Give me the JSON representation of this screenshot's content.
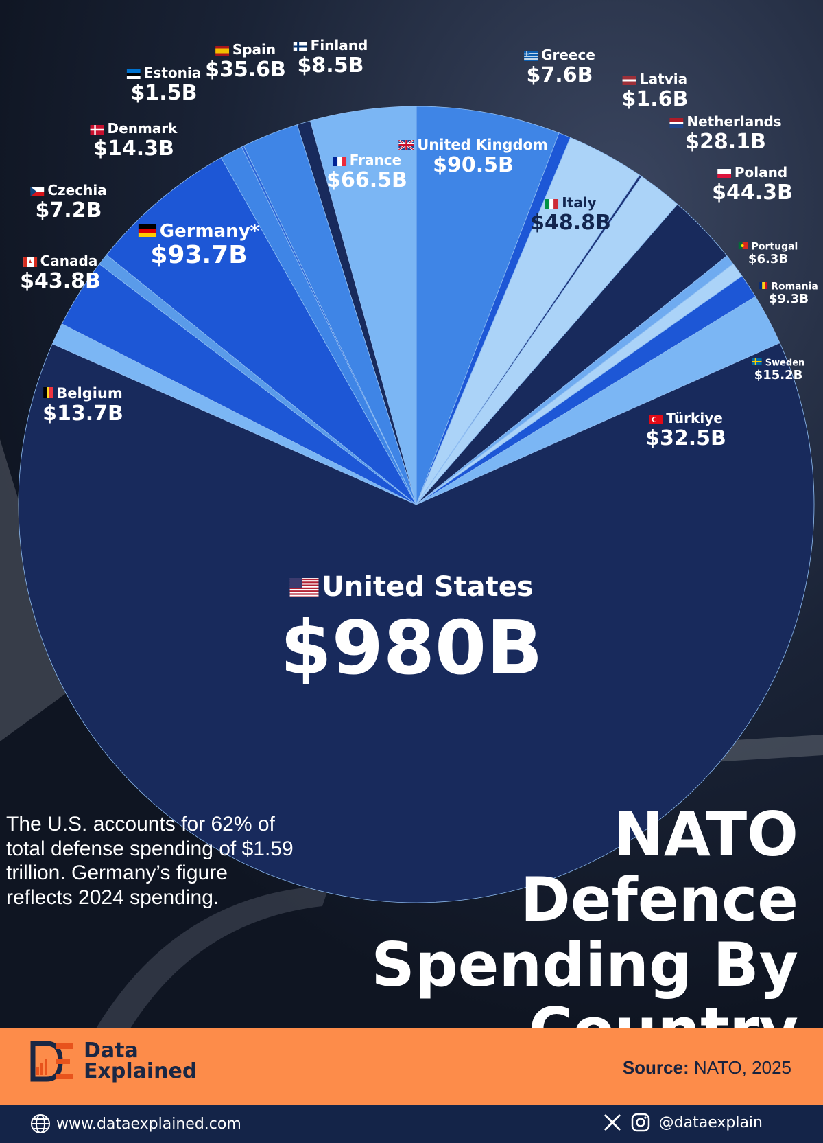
{
  "chart_data": {
    "type": "pie",
    "title": "NATO Defence Spending By Country",
    "note": "The U.S. accounts for 62% of total defense spending of $1.59 trillion. Germany’s figure reflects 2024 spending.",
    "slices": [
      {
        "name": "United Kingdom",
        "value": 90.5,
        "label": "$90.5B",
        "color": "#3f85e6"
      },
      {
        "name": "Greece",
        "value": 7.6,
        "label": "$7.6B",
        "color": "#1d57d6"
      },
      {
        "name": "Italy",
        "value": 48.8,
        "label": "$48.8B",
        "color": "#abd3f8"
      },
      {
        "name": "Latvia",
        "value": 1.6,
        "label": "$1.6B",
        "color": "#1e3476"
      },
      {
        "name": "Netherlands",
        "value": 28.1,
        "label": "$28.1B",
        "color": "#abd3f8"
      },
      {
        "name": "Poland",
        "value": 44.3,
        "label": "$44.3B",
        "color": "#182a5c"
      },
      {
        "name": "Portugal",
        "value": 6.3,
        "label": "$6.3B",
        "color": "#6fabf0"
      },
      {
        "name": "Romania",
        "value": 9.3,
        "label": "$9.3B",
        "color": "#abd3f8"
      },
      {
        "name": "Sweden",
        "value": 15.2,
        "label": "$15.2B",
        "color": "#1d57d6"
      },
      {
        "name": "Türkiye",
        "value": 32.5,
        "label": "$32.5B",
        "color": "#7bb6f4"
      },
      {
        "name": "United States",
        "value": 980,
        "label": "$980B",
        "color": "#182a5c"
      },
      {
        "name": "Belgium",
        "value": 13.7,
        "label": "$13.7B",
        "color": "#7bb6f4"
      },
      {
        "name": "Canada",
        "value": 43.8,
        "label": "$43.8B",
        "color": "#1d57d6"
      },
      {
        "name": "Czechia",
        "value": 7.2,
        "label": "$7.2B",
        "color": "#5a9be9"
      },
      {
        "name": "Germany*",
        "value": 93.7,
        "label": "$93.7B",
        "color": "#1d57d6"
      },
      {
        "name": "Denmark",
        "value": 14.3,
        "label": "$14.3B",
        "color": "#3f85e6"
      },
      {
        "name": "Estonia",
        "value": 1.5,
        "label": "$1.5B",
        "color": "#2c64d8"
      },
      {
        "name": "Spain",
        "value": 35.6,
        "label": "$35.6B",
        "color": "#3f85e6"
      },
      {
        "name": "Finland",
        "value": 8.5,
        "label": "$8.5B",
        "color": "#182a5c"
      },
      {
        "name": "France",
        "value": 66.5,
        "label": "$66.5B",
        "color": "#7bb6f4"
      }
    ]
  },
  "us_label": {
    "name": "United States",
    "value": "$980B"
  },
  "footer": {
    "brand_line1": "Data",
    "brand_line2": "Explained",
    "source_label": "Source:",
    "source_value": "NATO, 2025",
    "website": "www.dataexplained.com",
    "handle": "@dataexplain"
  },
  "colors": {
    "footer_band": "#fd8c4a",
    "bottom_bar": "#142448",
    "background": "#141c2c"
  }
}
